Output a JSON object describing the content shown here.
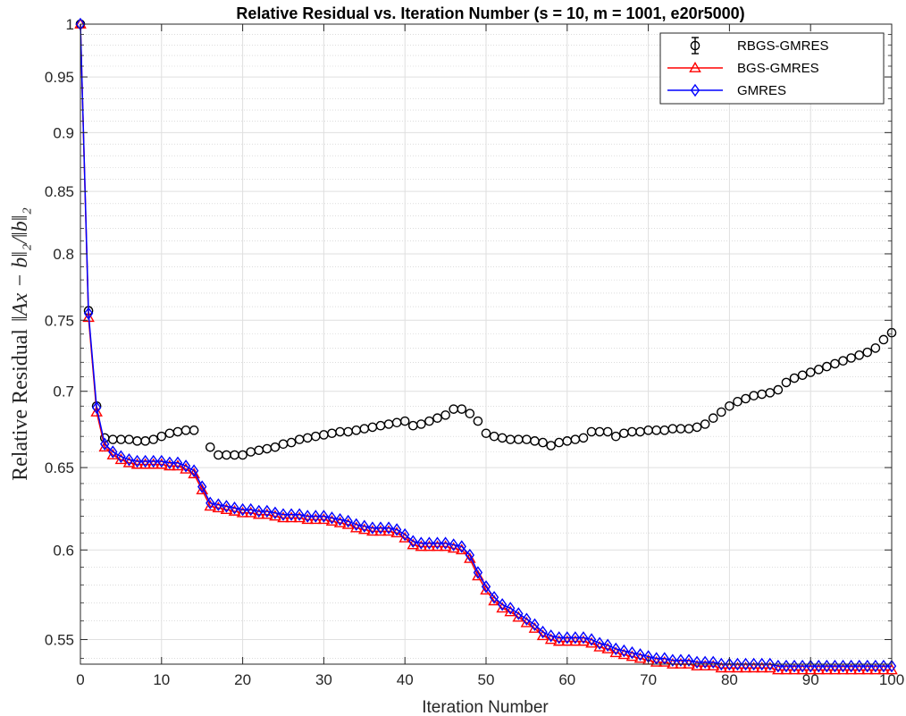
{
  "chart_data": {
    "type": "line",
    "title": "Relative Residual vs. Iteration Number (s = 10, m = 1001, e20r5000)",
    "xlabel": "Iteration Number",
    "ylabel_prefix": "Relative Residual",
    "ylabel_math": "‖Ax − b‖₂/‖b‖₂",
    "xlim": [
      0,
      100
    ],
    "ylim": [
      0.537,
      1.0
    ],
    "yscale": "log",
    "x_ticks": [
      0,
      10,
      20,
      30,
      40,
      50,
      60,
      70,
      80,
      90,
      100
    ],
    "y_ticks": [
      0.55,
      0.6,
      0.65,
      0.7,
      0.75,
      0.8,
      0.85,
      0.9,
      0.95,
      1
    ],
    "y_tick_labels": [
      "0.55",
      "0.6",
      "0.65",
      "0.7",
      "0.75",
      "0.8",
      "0.85",
      "0.9",
      "0.95",
      "1"
    ],
    "grid": true,
    "minor_grid": true,
    "legend_position": "top-right",
    "series": [
      {
        "name": "RBGS-GMRES",
        "color": "#000000",
        "marker": "circle",
        "error_bars": true,
        "x": [
          0,
          1,
          2,
          3,
          4,
          5,
          6,
          7,
          8,
          9,
          10,
          11,
          12,
          13,
          14,
          15,
          16,
          17,
          18,
          19,
          20,
          21,
          22,
          23,
          24,
          25,
          26,
          27,
          28,
          29,
          30,
          31,
          32,
          33,
          34,
          35,
          36,
          37,
          38,
          39,
          40,
          41,
          42,
          43,
          44,
          45,
          46,
          47,
          48,
          49,
          50,
          51,
          52,
          53,
          54,
          55,
          56,
          57,
          58,
          59,
          60,
          61,
          62,
          63,
          64,
          65,
          66,
          67,
          68,
          69,
          70,
          71,
          72,
          73,
          74,
          75,
          76,
          77,
          78,
          79,
          80,
          81,
          82,
          83,
          84,
          85,
          86,
          87,
          88,
          89,
          90,
          91,
          92,
          93,
          94,
          95,
          96,
          97,
          98,
          99,
          100
        ],
        "values": [
          1.0,
          0.757,
          0.69,
          0.669,
          0.668,
          0.668,
          0.668,
          0.667,
          0.667,
          0.668,
          0.67,
          0.672,
          0.673,
          0.674,
          0.674,
          null,
          0.663,
          0.658,
          0.658,
          0.658,
          0.658,
          0.66,
          0.661,
          0.662,
          0.663,
          0.665,
          0.666,
          0.668,
          0.669,
          0.67,
          0.671,
          0.672,
          0.673,
          0.673,
          0.674,
          0.675,
          0.676,
          0.677,
          0.678,
          0.679,
          0.68,
          0.677,
          0.678,
          0.68,
          0.682,
          0.684,
          0.688,
          0.688,
          0.685,
          0.68,
          0.672,
          0.67,
          0.669,
          0.668,
          0.668,
          0.668,
          0.667,
          0.666,
          0.664,
          0.666,
          0.667,
          0.668,
          0.669,
          0.673,
          0.673,
          0.673,
          0.67,
          0.672,
          0.673,
          0.673,
          0.674,
          0.674,
          0.674,
          0.675,
          0.675,
          0.675,
          0.676,
          0.678,
          0.682,
          0.686,
          0.69,
          0.693,
          0.695,
          0.697,
          0.698,
          0.699,
          0.701,
          0.706,
          0.709,
          0.711,
          0.713,
          0.715,
          0.717,
          0.719,
          0.721,
          0.723,
          0.725,
          0.727,
          0.73,
          0.736,
          0.741
        ]
      },
      {
        "name": "BGS-GMRES",
        "color": "#ff0000",
        "marker": "triangle",
        "x": [
          0,
          1,
          2,
          3,
          4,
          5,
          6,
          7,
          8,
          9,
          10,
          11,
          12,
          13,
          14,
          15,
          16,
          17,
          18,
          19,
          20,
          21,
          22,
          23,
          24,
          25,
          26,
          27,
          28,
          29,
          30,
          31,
          32,
          33,
          34,
          35,
          36,
          37,
          38,
          39,
          40,
          41,
          42,
          43,
          44,
          45,
          46,
          47,
          48,
          49,
          50,
          51,
          52,
          53,
          54,
          55,
          56,
          57,
          58,
          59,
          60,
          61,
          62,
          63,
          64,
          65,
          66,
          67,
          68,
          69,
          70,
          71,
          72,
          73,
          74,
          75,
          76,
          77,
          78,
          79,
          80,
          81,
          82,
          83,
          84,
          85,
          86,
          87,
          88,
          89,
          90,
          91,
          92,
          93,
          94,
          95,
          96,
          97,
          98,
          99,
          100
        ],
        "values": [
          1.0,
          0.752,
          0.686,
          0.663,
          0.658,
          0.655,
          0.653,
          0.652,
          0.652,
          0.652,
          0.652,
          0.651,
          0.651,
          0.649,
          0.646,
          0.636,
          0.626,
          0.625,
          0.624,
          0.623,
          0.622,
          0.622,
          0.621,
          0.621,
          0.62,
          0.619,
          0.619,
          0.619,
          0.618,
          0.618,
          0.618,
          0.617,
          0.616,
          0.615,
          0.613,
          0.612,
          0.611,
          0.611,
          0.611,
          0.61,
          0.607,
          0.603,
          0.602,
          0.602,
          0.602,
          0.602,
          0.601,
          0.6,
          0.595,
          0.585,
          0.577,
          0.571,
          0.567,
          0.565,
          0.562,
          0.559,
          0.556,
          0.552,
          0.55,
          0.549,
          0.549,
          0.549,
          0.549,
          0.548,
          0.546,
          0.545,
          0.543,
          0.542,
          0.541,
          0.54,
          0.539,
          0.538,
          0.538,
          0.537,
          0.537,
          0.537,
          0.536,
          0.536,
          0.536,
          0.535,
          0.535,
          0.535,
          0.535,
          0.535,
          0.535,
          0.535,
          0.534,
          0.534,
          0.534,
          0.534,
          0.534,
          0.534,
          0.534,
          0.534,
          0.534,
          0.534,
          0.534,
          0.534,
          0.534,
          0.534,
          0.534
        ]
      },
      {
        "name": "GMRES",
        "color": "#0000ff",
        "marker": "diamond",
        "x": [
          0,
          1,
          2,
          3,
          4,
          5,
          6,
          7,
          8,
          9,
          10,
          11,
          12,
          13,
          14,
          15,
          16,
          17,
          18,
          19,
          20,
          21,
          22,
          23,
          24,
          25,
          26,
          27,
          28,
          29,
          30,
          31,
          32,
          33,
          34,
          35,
          36,
          37,
          38,
          39,
          40,
          41,
          42,
          43,
          44,
          45,
          46,
          47,
          48,
          49,
          50,
          51,
          52,
          53,
          54,
          55,
          56,
          57,
          58,
          59,
          60,
          61,
          62,
          63,
          64,
          65,
          66,
          67,
          68,
          69,
          70,
          71,
          72,
          73,
          74,
          75,
          76,
          77,
          78,
          79,
          80,
          81,
          82,
          83,
          84,
          85,
          86,
          87,
          88,
          89,
          90,
          91,
          92,
          93,
          94,
          95,
          96,
          97,
          98,
          99,
          100
        ],
        "values": [
          1.0,
          0.755,
          0.689,
          0.665,
          0.66,
          0.657,
          0.655,
          0.654,
          0.654,
          0.654,
          0.654,
          0.653,
          0.653,
          0.651,
          0.648,
          0.638,
          0.628,
          0.627,
          0.626,
          0.625,
          0.624,
          0.624,
          0.623,
          0.623,
          0.622,
          0.621,
          0.621,
          0.621,
          0.62,
          0.62,
          0.62,
          0.619,
          0.618,
          0.617,
          0.615,
          0.614,
          0.613,
          0.613,
          0.613,
          0.612,
          0.609,
          0.605,
          0.604,
          0.604,
          0.604,
          0.604,
          0.603,
          0.602,
          0.597,
          0.587,
          0.579,
          0.573,
          0.569,
          0.567,
          0.564,
          0.561,
          0.558,
          0.554,
          0.552,
          0.551,
          0.551,
          0.551,
          0.551,
          0.55,
          0.548,
          0.547,
          0.545,
          0.544,
          0.543,
          0.542,
          0.541,
          0.54,
          0.54,
          0.539,
          0.539,
          0.539,
          0.538,
          0.538,
          0.538,
          0.537,
          0.537,
          0.537,
          0.537,
          0.537,
          0.537,
          0.537,
          0.536,
          0.536,
          0.536,
          0.536,
          0.536,
          0.536,
          0.536,
          0.536,
          0.536,
          0.536,
          0.536,
          0.536,
          0.536,
          0.536,
          0.536
        ]
      }
    ]
  }
}
